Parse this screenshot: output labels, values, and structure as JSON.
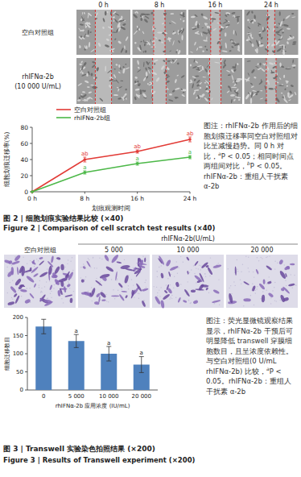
{
  "chart_data": [
    {
      "type": "line",
      "categories": [
        "0 h",
        "8 h",
        "16 h",
        "24 h"
      ],
      "x_label": "划痕观测时间",
      "y_label": "细胞划痕迁移率(%)",
      "ylim": [
        0,
        80
      ],
      "yticks": [
        0,
        20,
        40,
        60,
        80
      ],
      "grid": false,
      "legend": "top",
      "series": [
        {
          "name": "空白对照组",
          "color": "#e23b36",
          "marker": "circle",
          "values": [
            0,
            40,
            50,
            65
          ],
          "errors": [
            0,
            3,
            2,
            3
          ],
          "annotations": [
            null,
            "ab",
            "ab",
            "ab"
          ]
        },
        {
          "name": "rhIFNα-2b组",
          "color": "#4cb848",
          "marker": "circle",
          "values": [
            0,
            24,
            35,
            43
          ],
          "errors": [
            0,
            2,
            2,
            2
          ],
          "annotations": [
            null,
            "a",
            "a",
            "a"
          ]
        }
      ]
    },
    {
      "type": "bar",
      "categories": [
        "0",
        "5 000",
        "10 000",
        "20 000"
      ],
      "x_label": "rhIFNα-2b 应用浓度 (IU/mL)",
      "y_label": "细胞迁移数目",
      "values": [
        175,
        135,
        100,
        70
      ],
      "errors": [
        20,
        18,
        20,
        22
      ],
      "annotations": [
        null,
        "a",
        "a",
        "a"
      ],
      "color": "#4f81bd",
      "ylim": [
        0,
        200
      ],
      "yticks": [
        0,
        50,
        100,
        150,
        200
      ],
      "grid": false
    }
  ],
  "figure2": {
    "columns": [
      "0 h",
      "8 h",
      "16 h",
      "24 h"
    ],
    "rows": [
      [
        "空白对照组"
      ],
      [
        "rhIFNα-2b",
        "(10 000 U/mL)"
      ]
    ],
    "note": [
      {
        "text": "图注：rhIFNα-2b 作用后的细胞划痕迁移率同空白对照组对比呈减慢趋势。同 0 h 对比，"
      },
      {
        "text": "a",
        "sup": true
      },
      {
        "text": "P < 0.05；相同时间点两组间对比，"
      },
      {
        "text": "b",
        "sup": true
      },
      {
        "text": "P < 0.05。rhIFNα-2b：重组人干扰素 α-2b"
      }
    ],
    "caption_cn": "图 2 | 细胞划痕实验结果比较 (×40)",
    "caption_en": "Figure 2 | Comparison of cell scratch test results (×40)"
  },
  "figure3": {
    "group_label": "rhIFNα-2b(U/mL)",
    "columns": [
      "空白对照组",
      "5 000",
      "10 000",
      "20 000"
    ],
    "note": [
      {
        "text": "图注：荧光显微镜观察结果显示，rhIFNα-2b 干预后可明显降低 transwell 穿膜细胞数目，且呈浓度依赖性。与空白对照组(0 U/mL rhIFNα-2b) 比较，"
      },
      {
        "text": "a",
        "sup": true
      },
      {
        "text": "P < 0.05。rhIFNα-2b：重组人干扰素 α-2b"
      }
    ],
    "caption_cn": "图 3 | Transwell 实验染色拍照结果 (×200)",
    "caption_en": "Figure 3 | Results of Transwell experiment (×200)"
  }
}
